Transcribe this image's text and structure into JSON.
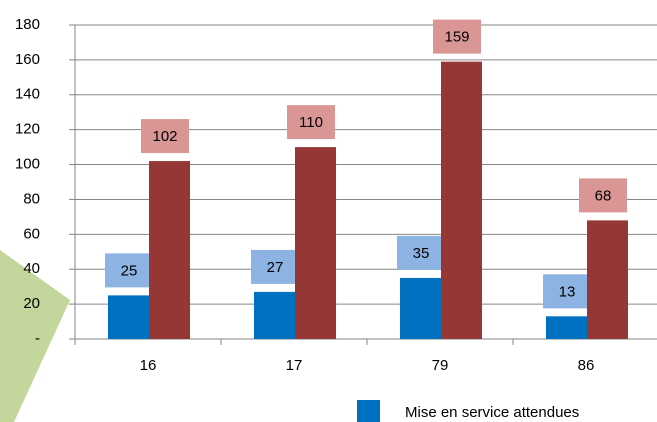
{
  "chart_data": {
    "type": "bar",
    "categories": [
      "16",
      "17",
      "79",
      "86"
    ],
    "series": [
      {
        "name": "Mise en service attendues",
        "color": "#0070c0",
        "label_color": "#8db3e2",
        "values": [
          25,
          27,
          35,
          13
        ]
      },
      {
        "color": "#953735",
        "label_color": "#d99694",
        "values": [
          102,
          110,
          159,
          68
        ]
      }
    ],
    "ylim": [
      0,
      180
    ],
    "yticks": [
      {
        "value": 0,
        "label": "-"
      },
      20,
      40,
      60,
      80,
      100,
      120,
      140,
      160,
      180
    ],
    "grid": true
  }
}
